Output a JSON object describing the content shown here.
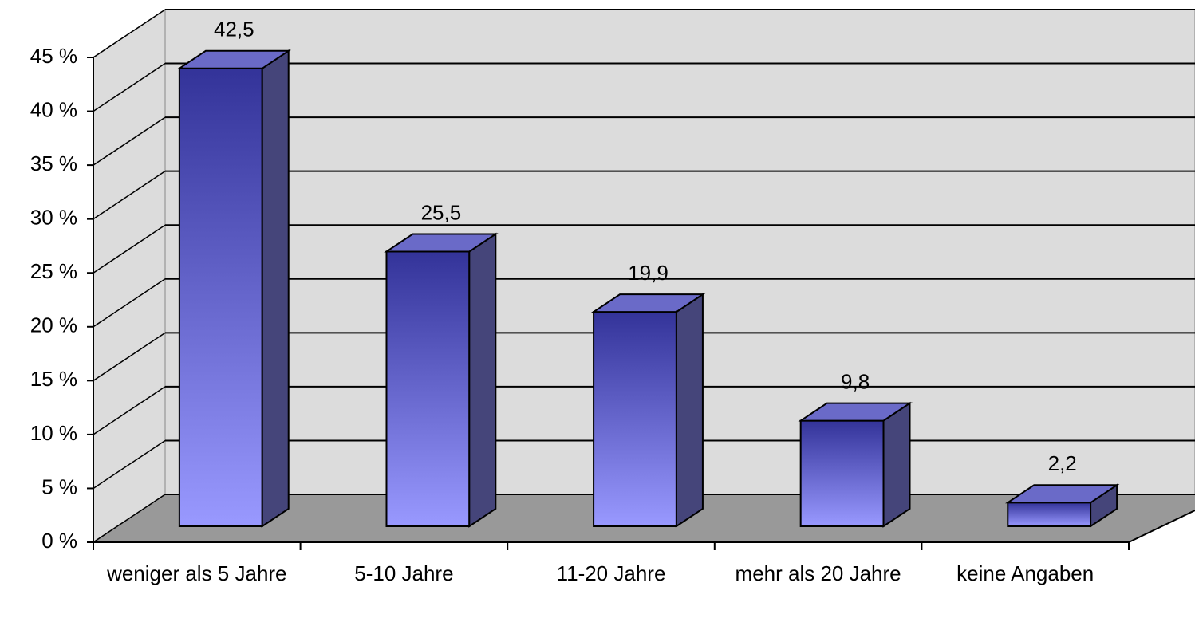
{
  "chart_data": {
    "type": "bar3d",
    "categories": [
      "weniger als 5 Jahre",
      "5-10 Jahre",
      "11-20 Jahre",
      "mehr als 20 Jahre",
      "keine Angaben"
    ],
    "values": [
      42.5,
      25.5,
      19.9,
      9.8,
      2.2
    ],
    "value_labels": [
      "42,5",
      "25,5",
      "19,9",
      "9,8",
      "2,2"
    ],
    "color": "#333399",
    "ylim": [
      0,
      45
    ],
    "yticks": [
      {
        "value": 0,
        "label": "0 %"
      },
      {
        "value": 5,
        "label": "5 %"
      },
      {
        "value": 10,
        "label": "10 %"
      },
      {
        "value": 15,
        "label": "15 %"
      },
      {
        "value": 20,
        "label": "20 %"
      },
      {
        "value": 25,
        "label": "25 %"
      },
      {
        "value": 30,
        "label": "30 %"
      },
      {
        "value": 35,
        "label": "35 %"
      },
      {
        "value": 40,
        "label": "40 %"
      },
      {
        "value": 45,
        "label": "45 %"
      }
    ],
    "grid": true
  }
}
